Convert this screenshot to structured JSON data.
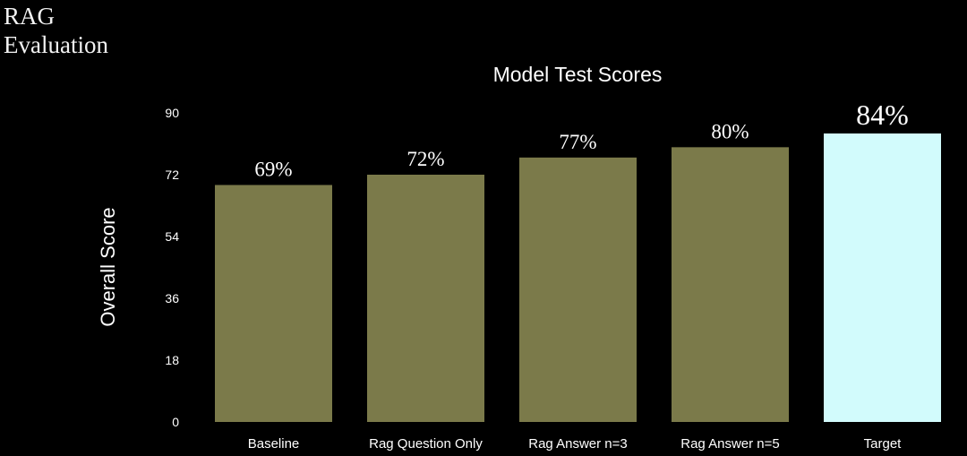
{
  "slide": {
    "title_line1": "RAG",
    "title_line2": "Evaluation"
  },
  "colors": {
    "background": "#000000",
    "bar": "#7b7a4a",
    "highlight_bar": "#d2fbfc",
    "text": "#ffffff"
  },
  "chart_data": {
    "type": "bar",
    "title": "Model Test Scores",
    "xlabel": "",
    "ylabel": "Overall Score",
    "ylim": [
      0,
      90
    ],
    "yticks": [
      "0",
      "18",
      "36",
      "54",
      "72",
      "90"
    ],
    "grid": false,
    "categories": [
      "Baseline",
      "Rag Question Only",
      "Rag Answer n=3",
      "Rag Answer n=5",
      "Target"
    ],
    "values": [
      69,
      72,
      77,
      80,
      84
    ],
    "data_labels": [
      "69%",
      "72%",
      "77%",
      "80%",
      "84%"
    ],
    "highlight_category": "Target"
  }
}
